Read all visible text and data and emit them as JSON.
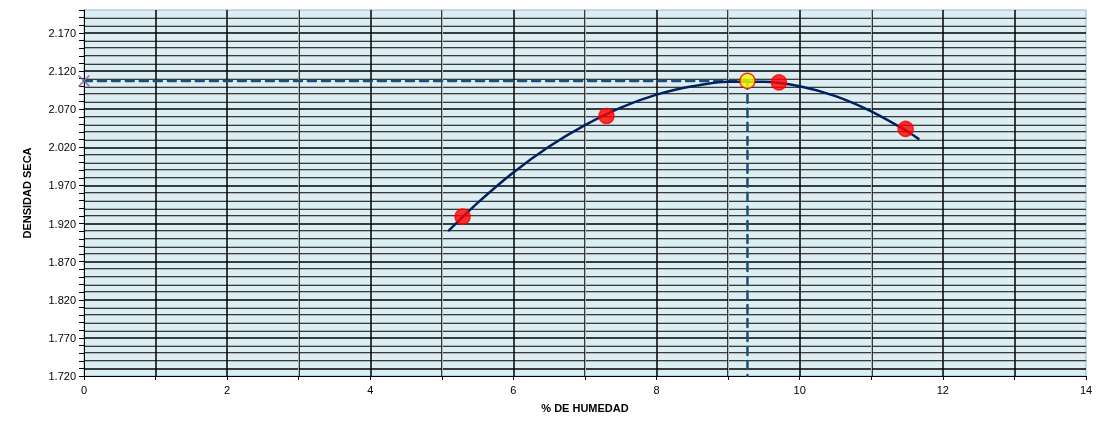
{
  "chart_data": {
    "type": "scatter",
    "xlabel": "% DE HUMEDAD",
    "ylabel": "DENSIDAD SECA",
    "xlim": [
      0,
      14
    ],
    "xticks": [
      0,
      {
        "value": 1,
        "label": null
      },
      2,
      {
        "value": 3,
        "label": null
      },
      4,
      {
        "value": 5,
        "label": null
      },
      6,
      {
        "value": 7,
        "label": null
      },
      8,
      {
        "value": 9,
        "label": null
      },
      10,
      {
        "value": 11,
        "label": null
      },
      12,
      {
        "value": 13,
        "label": null
      },
      14
    ],
    "ylim": [
      1.72,
      2.2
    ],
    "yticks": [
      {
        "value": 1.72,
        "label": "1.720"
      },
      {
        "value": 1.73,
        "label": null
      },
      {
        "value": 1.74,
        "label": null
      },
      {
        "value": 1.75,
        "label": null
      },
      {
        "value": 1.76,
        "label": null
      },
      {
        "value": 1.77,
        "label": "1.770"
      },
      {
        "value": 1.78,
        "label": null
      },
      {
        "value": 1.79,
        "label": null
      },
      {
        "value": 1.8,
        "label": null
      },
      {
        "value": 1.81,
        "label": null
      },
      {
        "value": 1.82,
        "label": "1.820"
      },
      {
        "value": 1.83,
        "label": null
      },
      {
        "value": 1.84,
        "label": null
      },
      {
        "value": 1.85,
        "label": null
      },
      {
        "value": 1.86,
        "label": null
      },
      {
        "value": 1.87,
        "label": "1.870"
      },
      {
        "value": 1.88,
        "label": null
      },
      {
        "value": 1.89,
        "label": null
      },
      {
        "value": 1.9,
        "label": null
      },
      {
        "value": 1.91,
        "label": null
      },
      {
        "value": 1.92,
        "label": "1.920"
      },
      {
        "value": 1.93,
        "label": null
      },
      {
        "value": 1.94,
        "label": null
      },
      {
        "value": 1.95,
        "label": null
      },
      {
        "value": 1.96,
        "label": null
      },
      {
        "value": 1.97,
        "label": "1.970"
      },
      {
        "value": 1.98,
        "label": null
      },
      {
        "value": 1.99,
        "label": null
      },
      {
        "value": 2.0,
        "label": null
      },
      {
        "value": 2.01,
        "label": null
      },
      {
        "value": 2.02,
        "label": "2.020"
      },
      {
        "value": 2.03,
        "label": null
      },
      {
        "value": 2.04,
        "label": null
      },
      {
        "value": 2.05,
        "label": null
      },
      {
        "value": 2.06,
        "label": null
      },
      {
        "value": 2.07,
        "label": "2.070"
      },
      {
        "value": 2.08,
        "label": null
      },
      {
        "value": 2.09,
        "label": null
      },
      {
        "value": 2.1,
        "label": null
      },
      {
        "value": 2.11,
        "label": null
      },
      {
        "value": 2.12,
        "label": "2.120"
      },
      {
        "value": 2.13,
        "label": null
      },
      {
        "value": 2.14,
        "label": null
      },
      {
        "value": 2.15,
        "label": null
      },
      {
        "value": 2.16,
        "label": null
      },
      {
        "value": 2.17,
        "label": "2.170"
      },
      {
        "value": 2.18,
        "label": null
      },
      {
        "value": 2.19,
        "label": null
      },
      {
        "value": 2.2,
        "label": null
      }
    ],
    "grid": true,
    "series": [
      {
        "type": "line",
        "color": "#1f4e79",
        "line_style": "dashed",
        "marker": "none",
        "x": [
          0,
          9.27
        ],
        "values": [
          2.107,
          2.107
        ]
      },
      {
        "type": "line",
        "color": "#1f4e79",
        "line_style": "dashed",
        "marker": "none",
        "x": [
          9.27,
          9.27
        ],
        "values": [
          2.107,
          1.72
        ]
      },
      {
        "type": "line",
        "color": "#002060",
        "line_style": "solid",
        "marker": "none",
        "x": [
          5.1,
          5.5,
          6,
          6.5,
          7,
          7.5,
          8,
          8.5,
          9,
          9.5,
          10,
          10.5,
          11,
          11.5,
          11.66
        ],
        "values": [
          1.911,
          1.947,
          1.987,
          2.021,
          2.049,
          2.072,
          2.089,
          2.1,
          2.106,
          2.106,
          2.1,
          2.087,
          2.067,
          2.041,
          2.031
        ]
      },
      {
        "color": "#ff0000",
        "marker": "circle",
        "x": [
          5.29,
          7.3,
          9.71,
          11.48
        ],
        "values": [
          1.929,
          2.061,
          2.105,
          2.044
        ]
      },
      {
        "color": "#ffff00",
        "marker": "circle",
        "x": [
          9.27
        ],
        "values": [
          2.107
        ]
      },
      {
        "color": "#7f5fa0",
        "marker": "cross",
        "x": [
          0
        ],
        "values": [
          2.107
        ]
      }
    ]
  }
}
